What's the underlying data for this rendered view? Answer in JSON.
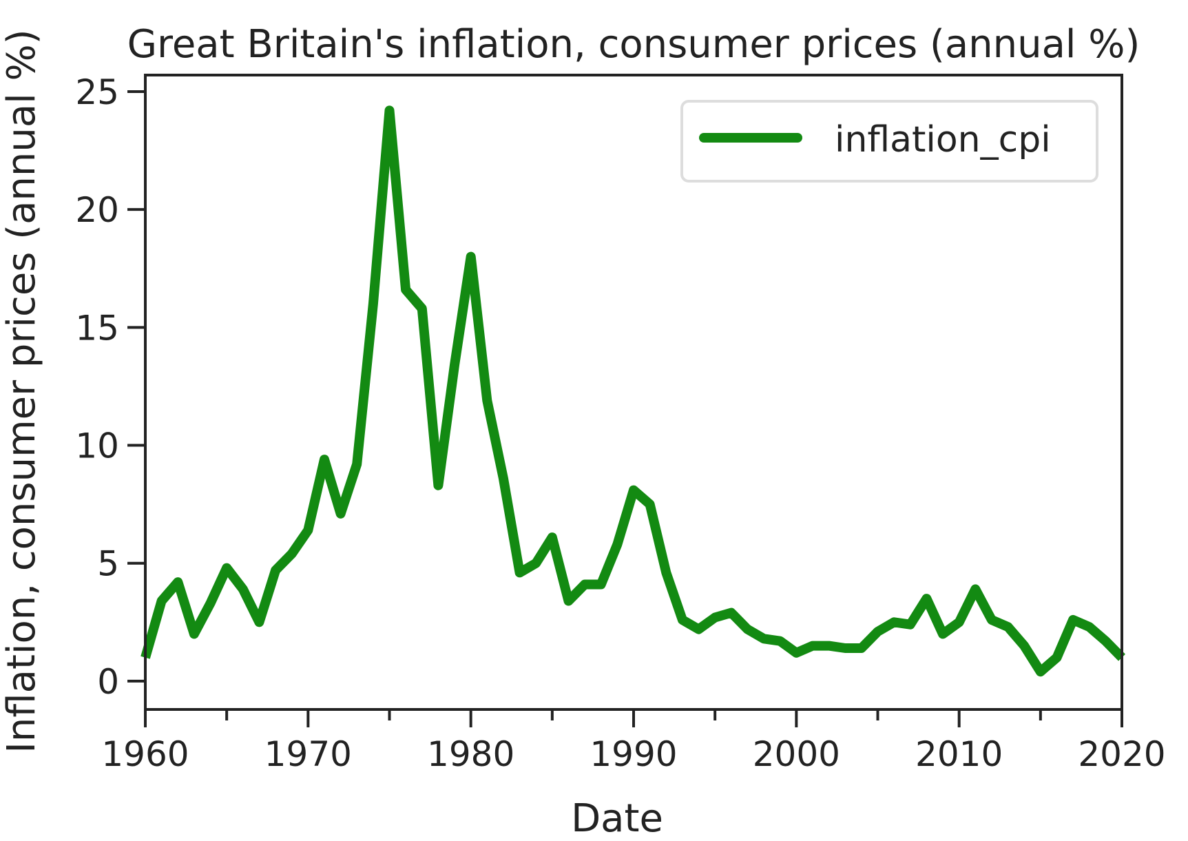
{
  "chart_data": {
    "type": "line",
    "title": "Great Britain's inflation, consumer prices (annual %)",
    "xlabel": "Date",
    "ylabel": "Inflation, consumer prices (annual %)",
    "xlim": [
      1960,
      2020
    ],
    "ylim": [
      -1.2,
      25.7
    ],
    "xticks": [
      1960,
      1970,
      1980,
      1990,
      2000,
      2010,
      2020
    ],
    "yticks": [
      0,
      5,
      10,
      15,
      20,
      25
    ],
    "grid": false,
    "legend_position": "top-right",
    "series": [
      {
        "name": "inflation_cpi",
        "color": "#138a12",
        "x": [
          1960,
          1961,
          1962,
          1963,
          1964,
          1965,
          1966,
          1967,
          1968,
          1969,
          1970,
          1971,
          1972,
          1973,
          1974,
          1975,
          1976,
          1977,
          1978,
          1979,
          1980,
          1981,
          1982,
          1983,
          1984,
          1985,
          1986,
          1987,
          1988,
          1989,
          1990,
          1991,
          1992,
          1993,
          1994,
          1995,
          1996,
          1997,
          1998,
          1999,
          2000,
          2001,
          2002,
          2003,
          2004,
          2005,
          2006,
          2007,
          2008,
          2009,
          2010,
          2011,
          2012,
          2013,
          2014,
          2015,
          2016,
          2017,
          2018,
          2019,
          2020
        ],
        "values": [
          1.0,
          3.4,
          4.2,
          2.0,
          3.3,
          4.8,
          3.9,
          2.5,
          4.7,
          5.4,
          6.4,
          9.4,
          7.1,
          9.2,
          16.0,
          24.2,
          16.6,
          15.8,
          8.3,
          13.4,
          18.0,
          11.9,
          8.6,
          4.6,
          5.0,
          6.1,
          3.4,
          4.1,
          4.1,
          5.8,
          8.1,
          7.5,
          4.6,
          2.6,
          2.2,
          2.7,
          2.9,
          2.2,
          1.8,
          1.7,
          1.2,
          1.5,
          1.5,
          1.4,
          1.4,
          2.1,
          2.5,
          2.4,
          3.5,
          2.0,
          2.5,
          3.9,
          2.6,
          2.3,
          1.5,
          0.4,
          1.0,
          2.6,
          2.3,
          1.7,
          1.0
        ]
      }
    ]
  }
}
